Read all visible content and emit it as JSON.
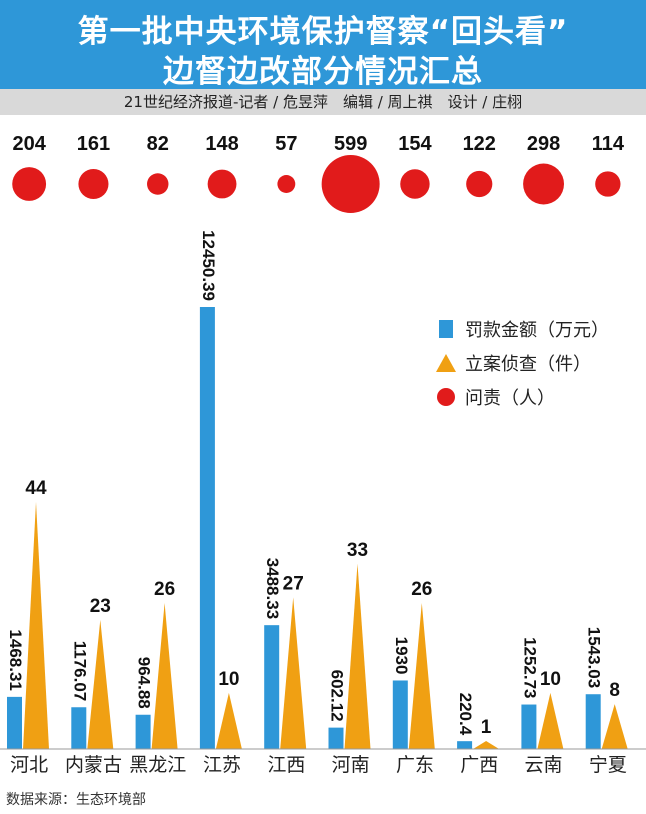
{
  "title": {
    "line1": "第一批中央环境保护督察“回头看”",
    "line2": "边督边改部分情况汇总"
  },
  "credit": "21世纪经济报道-记者 / 危昱萍　编辑 / 周上祺　设计 / 庄栩",
  "source": "数据来源：生态环境部",
  "colors": {
    "title_bg": "#2e97d8",
    "bar": "#2e97d8",
    "triangle": "#f0a013",
    "circle": "#e11b1b"
  },
  "legend": [
    {
      "label": "罚款金额（万元）",
      "icon": "blue-square"
    },
    {
      "label": "立案侦查（件）",
      "icon": "orange-triangle"
    },
    {
      "label": "问责（人）",
      "icon": "red-circle"
    }
  ],
  "chart_data": {
    "type": "bar",
    "categories": [
      "河北",
      "内蒙古",
      "黑龙江",
      "江苏",
      "江西",
      "河南",
      "广东",
      "广西",
      "云南",
      "宁夏"
    ],
    "series": [
      {
        "name": "罚款金额（万元）",
        "mark": "bar",
        "values": [
          1468.31,
          1176.07,
          964.88,
          12450.39,
          3488.33,
          602.12,
          1930,
          220.4,
          1252.73,
          1543.03
        ],
        "labels": [
          "1468.31",
          "1176.07",
          "964.88",
          "12450.39",
          "3488.33",
          "602.12",
          "1930",
          "220.4",
          "1252.73",
          "1543.03"
        ]
      },
      {
        "name": "立案侦查（件）",
        "mark": "triangle",
        "values": [
          44,
          23,
          26,
          10,
          27,
          33,
          26,
          1,
          10,
          8
        ],
        "labels": [
          "44",
          "23",
          "26",
          "10",
          "27",
          "33",
          "26",
          "1",
          "10",
          "8"
        ]
      },
      {
        "name": "问责（人）",
        "mark": "circle",
        "values": [
          204,
          161,
          82,
          148,
          57,
          599,
          154,
          122,
          298,
          114
        ],
        "labels": [
          "204",
          "161",
          "82",
          "148",
          "57",
          "599",
          "154",
          "122",
          "298",
          "114"
        ]
      }
    ],
    "title": "第一批中央环境保护督察“回头看”边督边改部分情况汇总",
    "xlabel": "",
    "ylabel": "",
    "ylim_fine": [
      0,
      12450.39
    ],
    "ylim_cases": [
      0,
      44
    ],
    "legend_position": "right"
  }
}
